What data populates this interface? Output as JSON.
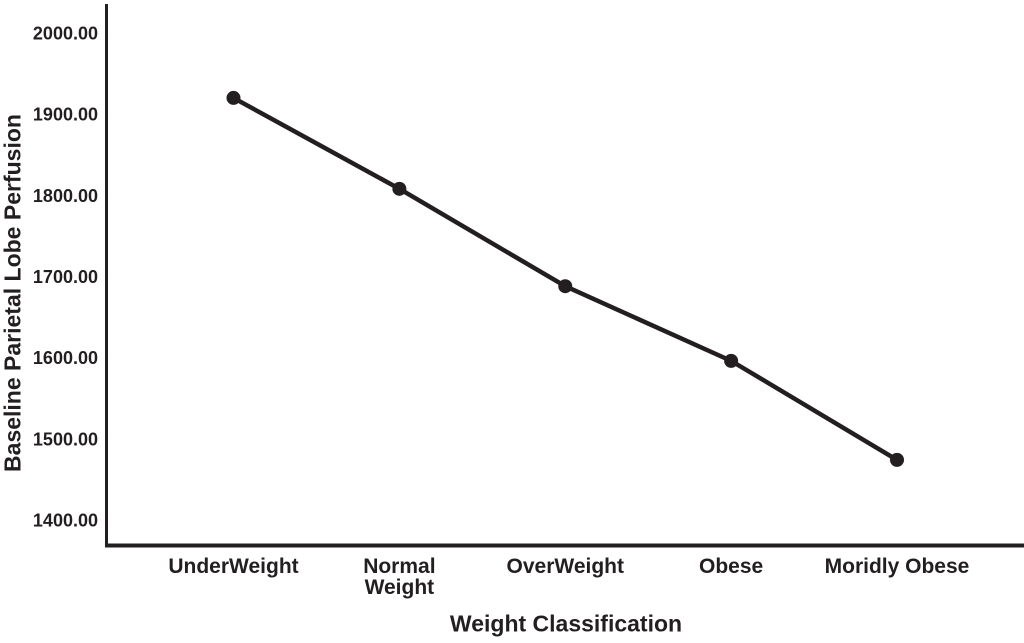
{
  "chart_data": {
    "type": "line",
    "title": "",
    "xlabel": "Weight Classification",
    "ylabel": "Baseline Parietal Lobe Perfusion",
    "categories": [
      "UnderWeight",
      "Normal\nWeight",
      "OverWeight",
      "Obese",
      "Moridly Obese"
    ],
    "series": [
      {
        "name": "Baseline Parietal Lobe Perfusion",
        "values": [
          1920,
          1808,
          1688,
          1596,
          1474
        ]
      }
    ],
    "y_ticks": [
      {
        "value": 2000,
        "label": "2000.00"
      },
      {
        "value": 1900,
        "label": "1900.00"
      },
      {
        "value": 1800,
        "label": "1800.00"
      },
      {
        "value": 1700,
        "label": "1700.00"
      },
      {
        "value": 1600,
        "label": "1600.00"
      },
      {
        "value": 1500,
        "label": "1500.00"
      },
      {
        "value": 1400,
        "label": "1400.00"
      }
    ],
    "ylim": [
      1368.5,
      2034.5
    ],
    "grid": false,
    "legend": "none",
    "marker": "circle",
    "ink_color": "#231f20",
    "background_color": "#ffffff"
  }
}
